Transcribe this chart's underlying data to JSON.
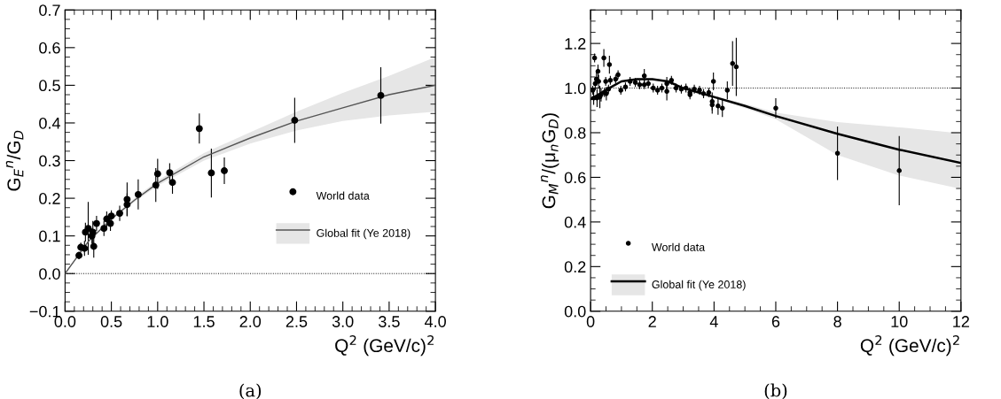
{
  "chart_data": [
    {
      "type": "scatter",
      "xlabel": "Q$^{2}$ (GeV/c)$^{2}$",
      "ylabel": "G$_{E}$$^{n}$/G$_{D}$",
      "xlim": [
        0,
        4
      ],
      "ylim": [
        -0.1,
        0.7
      ],
      "xticks": [
        {
          "value": 0,
          "label": "0.0"
        },
        0.5,
        {
          "value": 1,
          "label": "1.0"
        },
        1.5,
        {
          "value": 2,
          "label": "2.0"
        },
        2.5,
        {
          "value": 3,
          "label": "3.0"
        },
        3.5,
        {
          "value": 4,
          "label": "4.0"
        }
      ],
      "yticks": [
        {
          "value": -0.1,
          "label": "−0.1"
        },
        {
          "value": 0,
          "label": "0.0"
        },
        0.1,
        0.2,
        0.3,
        0.4,
        0.5,
        0.6,
        0.7
      ],
      "legend": "right",
      "grid": false,
      "annotations": [
        "(a)"
      ],
      "ref_lines": [
        {
          "axis": "y",
          "value": 0,
          "line_style": "dotted",
          "color": "#000000"
        }
      ],
      "series": [
        {
          "name": "World data",
          "type": "scatter",
          "marker": "circle",
          "color": "#000000",
          "x": [
            0.15,
            0.17,
            0.21,
            0.22,
            0.25,
            0.29,
            0.3,
            0.31,
            0.34,
            0.42,
            0.45,
            0.49,
            0.5,
            0.59,
            0.67,
            0.67,
            0.79,
            0.98,
            1.0,
            1.13,
            1.16,
            1.45,
            1.58,
            1.72,
            2.48,
            3.41
          ],
          "values": [
            0.048,
            0.07,
            0.067,
            0.11,
            0.12,
            0.1,
            0.11,
            0.072,
            0.133,
            0.12,
            0.145,
            0.133,
            0.153,
            0.16,
            0.183,
            0.197,
            0.21,
            0.235,
            0.265,
            0.268,
            0.242,
            0.385,
            0.267,
            0.273,
            0.407,
            0.473
          ],
          "errors": [
            0.01,
            0.012,
            0.02,
            0.025,
            0.07,
            0.02,
            0.03,
            0.03,
            0.02,
            0.02,
            0.02,
            0.02,
            0.015,
            0.02,
            0.03,
            0.045,
            0.04,
            0.045,
            0.04,
            0.025,
            0.03,
            0.04,
            0.065,
            0.035,
            0.06,
            0.075
          ]
        },
        {
          "name": "Global fit (Ye 2018)",
          "type": "line",
          "marker": "none",
          "color": "#555555",
          "x": [
            0,
            0.25,
            0.5,
            0.75,
            1.0,
            1.5,
            2.0,
            2.5,
            3.0,
            3.5,
            4.0
          ],
          "values": [
            0,
            0.085,
            0.145,
            0.195,
            0.24,
            0.31,
            0.36,
            0.405,
            0.44,
            0.475,
            0.5
          ],
          "lower": [
            0,
            0.083,
            0.142,
            0.19,
            0.233,
            0.3,
            0.345,
            0.38,
            0.405,
            0.42,
            0.43
          ],
          "upper": [
            0,
            0.087,
            0.148,
            0.2,
            0.247,
            0.32,
            0.375,
            0.43,
            0.48,
            0.525,
            0.575
          ]
        }
      ]
    },
    {
      "type": "scatter",
      "xlabel": "Q$^{2}$ (GeV/c)$^{2}$",
      "ylabel": "G$_{M}$$^{n}$/(μ$_{n}$G$_{D}$)",
      "xlim": [
        0,
        12
      ],
      "ylim": [
        0,
        1.35
      ],
      "xticks": [
        0,
        2,
        4,
        6,
        8,
        10,
        12
      ],
      "yticks": [
        {
          "value": 0,
          "label": "0.0"
        },
        0.2,
        0.4,
        0.6,
        0.8,
        {
          "value": 1,
          "label": "1.0"
        },
        1.2
      ],
      "legend": "bottom left",
      "grid": false,
      "annotations": [
        "(b)"
      ],
      "ref_lines": [
        {
          "axis": "y",
          "value": 1,
          "line_style": "dotted",
          "color": "#000000"
        }
      ],
      "series": [
        {
          "name": "World data",
          "type": "scatter",
          "marker": "circle",
          "color": "#000000",
          "x": [
            0.07,
            0.13,
            0.1,
            0.15,
            0.19,
            0.24,
            0.26,
            0.21,
            0.3,
            0.34,
            0.43,
            0.45,
            0.49,
            0.51,
            0.61,
            0.64,
            0.58,
            0.81,
            0.89,
            0.98,
            1.13,
            1.28,
            1.45,
            1.59,
            1.74,
            1.74,
            1.87,
            2.03,
            2.17,
            2.31,
            2.47,
            2.47,
            2.62,
            2.77,
            2.94,
            3.09,
            3.22,
            3.22,
            3.36,
            3.53,
            3.66,
            3.83,
            3.94,
            3.94,
            3.98,
            4.13,
            4.27,
            4.43,
            4.6,
            4.72,
            6.0,
            8.0,
            10.0
          ],
          "values": [
            0.99,
            1.135,
            0.955,
            1.02,
            1.04,
            1.075,
            1.03,
            0.955,
            0.96,
            0.97,
            1.135,
            0.98,
            1.03,
            0.975,
            1.105,
            1.035,
            0.995,
            1.04,
            1.06,
            0.99,
            1.005,
            1.03,
            1.025,
            1.015,
            1.055,
            1.015,
            1.02,
            1.0,
            0.99,
            1.0,
            1.02,
            0.985,
            1.035,
            1.0,
            0.995,
            1.0,
            0.98,
            0.97,
            0.995,
            0.99,
            0.975,
            0.98,
            0.94,
            0.925,
            1.03,
            0.92,
            0.91,
            0.99,
            1.11,
            1.095,
            0.91,
            0.708,
            0.63
          ],
          "errors": [
            0.02,
            0.02,
            0.03,
            0.03,
            0.03,
            0.03,
            0.03,
            0.04,
            0.05,
            0.03,
            0.04,
            0.02,
            0.02,
            0.03,
            0.04,
            0.02,
            0.02,
            0.02,
            0.02,
            0.02,
            0.02,
            0.02,
            0.02,
            0.02,
            0.03,
            0.02,
            0.02,
            0.02,
            0.02,
            0.02,
            0.03,
            0.04,
            0.02,
            0.02,
            0.02,
            0.02,
            0.02,
            0.02,
            0.02,
            0.02,
            0.02,
            0.02,
            0.04,
            0.04,
            0.04,
            0.04,
            0.04,
            0.04,
            0.1,
            0.13,
            0.045,
            0.12,
            0.155
          ]
        },
        {
          "name": "Global fit (Ye 2018)",
          "type": "line",
          "marker": "none",
          "color": "#000000",
          "x": [
            0,
            0.3,
            0.6,
            1.0,
            1.5,
            2.0,
            2.5,
            3.0,
            4.0,
            5.0,
            6.0,
            8.0,
            10.0,
            12.0
          ],
          "values": [
            0.95,
            0.975,
            1.0,
            1.03,
            1.04,
            1.04,
            1.03,
            1.0,
            0.96,
            0.92,
            0.875,
            0.795,
            0.724,
            0.664
          ],
          "lower": [
            0.945,
            0.97,
            0.995,
            1.025,
            1.035,
            1.035,
            1.025,
            0.995,
            0.955,
            0.91,
            0.86,
            0.7,
            0.608,
            0.548
          ],
          "upper": [
            0.955,
            0.98,
            1.005,
            1.035,
            1.045,
            1.045,
            1.035,
            1.005,
            0.965,
            0.93,
            0.89,
            0.848,
            0.824,
            0.797
          ]
        }
      ]
    }
  ]
}
